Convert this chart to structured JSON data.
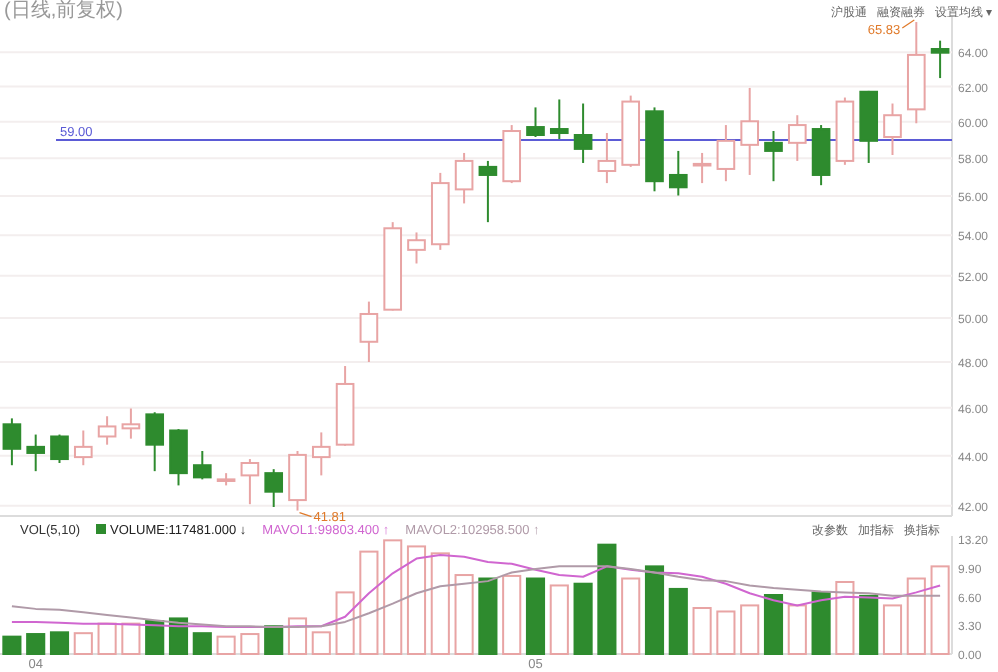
{
  "chart_data": [
    {
      "type": "candlestick",
      "title": "(日线,前复权)",
      "log": true,
      "grid": "y",
      "tick_labels": "y",
      "categories": [
        null,
        "04",
        null,
        null,
        null,
        null,
        null,
        null,
        null,
        null,
        null,
        null,
        null,
        null,
        null,
        null,
        null,
        null,
        null,
        null,
        null,
        null,
        "05",
        null,
        null,
        null,
        null,
        null,
        null,
        null,
        null,
        null,
        null,
        null,
        null,
        null,
        null,
        null,
        null,
        null
      ],
      "ylim": [
        41.6,
        66.2
      ],
      "yticks": [
        {
          "value": 42,
          "label": "42.00"
        },
        {
          "value": 44,
          "label": "44.00"
        },
        {
          "value": 46,
          "label": "46.00"
        },
        {
          "value": 48,
          "label": "48.00"
        },
        {
          "value": 50,
          "label": "50.00"
        },
        {
          "value": 52,
          "label": "52.00"
        },
        {
          "value": 54,
          "label": "54.00"
        },
        {
          "value": 56,
          "label": "56.00"
        },
        {
          "value": 58,
          "label": "58.00"
        },
        {
          "value": 60,
          "label": "60.00"
        },
        {
          "value": 62,
          "label": "62.00"
        },
        {
          "value": 64,
          "label": "64.00"
        }
      ],
      "ohlc": [
        [
          45.3,
          45.55,
          43.61,
          44.28
        ],
        [
          44.36,
          44.87,
          43.37,
          44.11
        ],
        [
          44.79,
          44.87,
          43.7,
          43.86
        ],
        [
          43.94,
          45.04,
          43.61,
          44.36
        ],
        [
          44.79,
          45.64,
          44.45,
          45.21
        ],
        [
          45.13,
          45.97,
          44.7,
          45.3
        ],
        [
          45.72,
          45.81,
          43.37,
          44.45
        ],
        [
          45.04,
          45.1,
          42.8,
          43.29
        ],
        [
          43.61,
          44.19,
          43.04,
          43.12
        ],
        [
          43.0,
          43.29,
          42.8,
          43.04
        ],
        [
          43.2,
          43.86,
          42.06,
          43.7
        ],
        [
          43.29,
          43.45,
          41.95,
          42.55
        ],
        [
          42.22,
          44.19,
          41.81,
          44.03
        ],
        [
          43.94,
          44.96,
          43.2,
          44.36
        ],
        [
          44.45,
          47.82,
          44.4,
          47.03
        ],
        [
          48.91,
          50.77,
          48.0,
          50.19
        ],
        [
          50.39,
          54.66,
          50.35,
          54.35
        ],
        [
          53.27,
          54.14,
          52.6,
          53.75
        ],
        [
          53.55,
          57.22,
          53.27,
          56.68
        ],
        [
          56.35,
          58.29,
          55.62,
          57.86
        ],
        [
          57.54,
          57.86,
          54.66,
          57.11
        ],
        [
          56.78,
          59.82,
          56.68,
          59.49
        ],
        [
          59.71,
          60.81,
          59.16,
          59.27
        ],
        [
          59.6,
          61.26,
          59.05,
          59.38
        ],
        [
          59.27,
          61.03,
          57.75,
          58.51
        ],
        [
          57.32,
          59.38,
          56.68,
          57.86
        ],
        [
          57.65,
          61.48,
          57.54,
          61.14
        ],
        [
          60.59,
          60.81,
          56.25,
          56.78
        ],
        [
          57.11,
          58.4,
          56.03,
          56.46
        ],
        [
          57.65,
          58.29,
          56.68,
          57.7
        ],
        [
          57.43,
          59.82,
          56.78,
          58.95
        ],
        [
          58.73,
          61.92,
          57.11,
          60.03
        ],
        [
          58.84,
          59.49,
          56.78,
          58.4
        ],
        [
          58.84,
          60.37,
          57.86,
          59.82
        ],
        [
          59.6,
          59.82,
          56.57,
          57.11
        ],
        [
          57.86,
          61.37,
          57.65,
          61.14
        ],
        [
          61.7,
          61.75,
          57.75,
          58.95
        ],
        [
          59.16,
          61.03,
          58.18,
          60.37
        ],
        [
          60.7,
          65.83,
          59.92,
          63.85
        ],
        [
          64.2,
          64.7,
          62.49,
          63.98
        ]
      ],
      "colors": [
        "#2e8b2e",
        "#2e8b2e",
        "#2e8b2e",
        "#e8a4a4",
        "#e8a4a4",
        "#e8a4a4",
        "#2e8b2e",
        "#2e8b2e",
        "#2e8b2e",
        "#e8a4a4",
        "#e8a4a4",
        "#2e8b2e",
        "#e8a4a4",
        "#e8a4a4",
        "#e8a4a4",
        "#e8a4a4",
        "#e8a4a4",
        "#e8a4a4",
        "#e8a4a4",
        "#e8a4a4",
        "#2e8b2e",
        "#e8a4a4",
        "#2e8b2e",
        "#2e8b2e",
        "#2e8b2e",
        "#e8a4a4",
        "#e8a4a4",
        "#2e8b2e",
        "#2e8b2e",
        "#e8a4a4",
        "#e8a4a4",
        "#e8a4a4",
        "#2e8b2e",
        "#e8a4a4",
        "#2e8b2e",
        "#e8a4a4",
        "#2e8b2e",
        "#e8a4a4",
        "#e8a4a4",
        "#2e8b2e"
      ],
      "ref_lines": [
        {
          "axis": "y",
          "value": 59,
          "label": "59.00",
          "color": "#5b5bd6"
        }
      ],
      "annotations": [
        "沪股通",
        "融资融券",
        "设置均线 ▾",
        "65.83",
        "41.81"
      ]
    },
    {
      "type": "bar",
      "legend": "top left",
      "legend_title": "VOL(5,10)",
      "tick_labels": "y",
      "categories": [
        null,
        "04",
        null,
        null,
        null,
        null,
        null,
        null,
        null,
        null,
        null,
        null,
        null,
        null,
        null,
        null,
        null,
        null,
        null,
        null,
        null,
        null,
        "05",
        null,
        null,
        null,
        null,
        null,
        null,
        null,
        null,
        null,
        null,
        null,
        null,
        null,
        null,
        null,
        null,
        null
      ],
      "ylim": [
        0,
        13.6
      ],
      "yticks": [
        {
          "value": 0,
          "label": "0.00"
        },
        {
          "value": 3.3,
          "label": "3.30"
        },
        {
          "value": 6.6,
          "label": "6.60"
        },
        {
          "value": 9.9,
          "label": "9.90"
        },
        {
          "value": 13.2,
          "label": "13.20"
        }
      ],
      "series": [
        {
          "name": "VOLUME:117481.000 ↓",
          "values": [
            2.0,
            2.3,
            2.5,
            2.4,
            3.5,
            3.5,
            3.8,
            4.1,
            2.4,
            2.0,
            2.3,
            3.2,
            4.1,
            2.5,
            7.1,
            11.8,
            13.1,
            12.4,
            11.6,
            9.1,
            8.7,
            9.0,
            8.7,
            7.9,
            8.1,
            12.6,
            8.7,
            10.1,
            7.5,
            5.3,
            4.9,
            5.6,
            6.8,
            5.6,
            7.1,
            8.3,
            6.7,
            5.6,
            8.7,
            10.1
          ],
          "colors": [
            "#2e8b2e",
            "#2e8b2e",
            "#2e8b2e",
            "#e8a4a4",
            "#e8a4a4",
            "#e8a4a4",
            "#2e8b2e",
            "#2e8b2e",
            "#2e8b2e",
            "#e8a4a4",
            "#e8a4a4",
            "#2e8b2e",
            "#e8a4a4",
            "#e8a4a4",
            "#e8a4a4",
            "#e8a4a4",
            "#e8a4a4",
            "#e8a4a4",
            "#e8a4a4",
            "#e8a4a4",
            "#2e8b2e",
            "#e8a4a4",
            "#2e8b2e",
            "#e8a4a4",
            "#2e8b2e",
            "#2e8b2e",
            "#e8a4a4",
            "#2e8b2e",
            "#2e8b2e",
            "#e8a4a4",
            "#e8a4a4",
            "#e8a4a4",
            "#2e8b2e",
            "#e8a4a4",
            "#2e8b2e",
            "#e8a4a4",
            "#2e8b2e",
            "#e8a4a4",
            "#e8a4a4",
            "#e8a4a4"
          ]
        },
        {
          "type": "line",
          "name": "MAVOL1:99803.400 ↑",
          "color": "#d066d0",
          "values": [
            3.7,
            3.7,
            3.6,
            3.5,
            3.5,
            3.4,
            3.3,
            3.2,
            3.2,
            3.1,
            3.1,
            3.1,
            3.2,
            3.2,
            4.3,
            7.0,
            9.3,
            11.0,
            11.4,
            11.2,
            10.6,
            10.4,
            9.7,
            9.1,
            8.9,
            10.1,
            9.7,
            9.4,
            9.3,
            8.9,
            8.1,
            7.0,
            6.2,
            5.6,
            6.2,
            6.6,
            6.5,
            6.4,
            7.1,
            7.9
          ]
        },
        {
          "type": "line",
          "name": "MAVOL2:102958.500 ↑",
          "color": "#b09aa8",
          "values": [
            5.5,
            5.2,
            5.1,
            4.8,
            4.5,
            4.2,
            3.9,
            3.6,
            3.4,
            3.2,
            3.2,
            3.1,
            3.1,
            3.2,
            3.7,
            4.7,
            5.8,
            7.0,
            7.8,
            8.1,
            8.4,
            9.4,
            9.8,
            10.1,
            10.1,
            10.1,
            9.8,
            9.4,
            8.9,
            8.5,
            8.4,
            7.9,
            7.6,
            7.4,
            7.2,
            7.1,
            7.0,
            6.7,
            6.7,
            6.7
          ]
        }
      ],
      "annotations": [
        "改参数",
        "加指标",
        "换指标"
      ]
    }
  ]
}
